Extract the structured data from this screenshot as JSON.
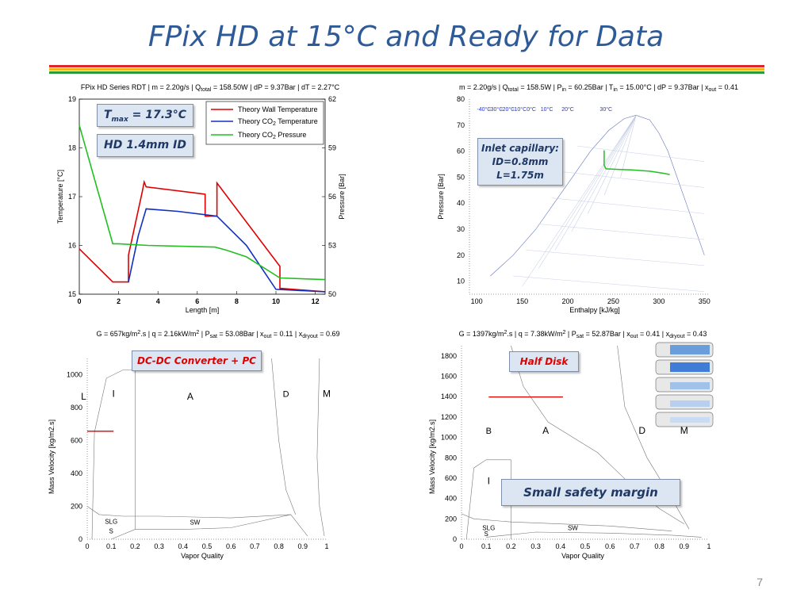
{
  "slide": {
    "title": "FPix HD at 15°C and Ready for Data",
    "page_number": "7",
    "band_colors": [
      "#e0242b",
      "#f0b418",
      "#2c9a3c"
    ]
  },
  "callouts": {
    "tmax": "T",
    "tmax_sub": "max",
    "tmax_rest": " = 17.3°C",
    "hd_id": "HD 1.4mm ID",
    "inlet_line1": "Inlet capillary:",
    "inlet_line2": "ID=0.8mm",
    "inlet_line3": "L=1.75m",
    "dcdc": "DC-DC Converter + PC",
    "half_disk": "Half Disk",
    "safety": "Small safety margin"
  },
  "chart_data": [
    {
      "type": "line",
      "title_parts": [
        "FPix HD Series RDT | m = 2.20g/s | Q",
        "total",
        " = 158.50W | dP = 9.37Bar | dT = 2.27°C"
      ],
      "xlabel": "Length [m]",
      "ylabel_left": "Temperature [°C]",
      "ylabel_right": "Pressure [Bar]",
      "xlim": [
        0,
        12.5
      ],
      "ylim_left": [
        15,
        19
      ],
      "ylim_right": [
        50,
        62
      ],
      "x_ticks": [
        "0",
        "2",
        "4",
        "6",
        "8",
        "10",
        "12"
      ],
      "y_ticks_left": [
        "15",
        "16",
        "17",
        "18",
        "19"
      ],
      "y_ticks_right": [
        "50",
        "53",
        "56",
        "59",
        "62"
      ],
      "legend": {
        "placement": "top-right",
        "entries": [
          {
            "text": "Theory Wall Temperature",
            "color": "#e00000"
          },
          {
            "text_parts": [
              "Theory CO",
              "2",
              " Temperature"
            ],
            "color": "#1030c0"
          },
          {
            "text_parts": [
              "Theory CO",
              "2",
              " Pressure"
            ],
            "color": "#20c020"
          }
        ]
      },
      "series": [
        {
          "name": "Theory Wall Temperature",
          "axis": "left",
          "color": "#e00000",
          "x": [
            0,
            1.7,
            2.5,
            2.5,
            3.2,
            3.3,
            3.4,
            6.4,
            6.4,
            7.0,
            7.0,
            10.2,
            10.2,
            12.5
          ],
          "y": [
            15.93,
            15.25,
            15.25,
            15.8,
            17.1,
            17.3,
            17.2,
            17.05,
            16.6,
            16.6,
            17.28,
            15.57,
            15.12,
            15.05
          ]
        },
        {
          "name": "Theory CO2 Temperature",
          "axis": "left",
          "color": "#1030c0",
          "x": [
            2.5,
            3.0,
            3.4,
            5.0,
            7.0,
            8.5,
            10.0,
            12.5
          ],
          "y": [
            15.25,
            16.2,
            16.75,
            16.7,
            16.6,
            16.0,
            15.1,
            15.05
          ]
        },
        {
          "name": "Theory CO2 Pressure",
          "axis": "right",
          "color": "#20c020",
          "x": [
            0,
            1.7,
            2.0,
            3.5,
            6.9,
            7.5,
            8.5,
            10.2,
            12.5
          ],
          "y": [
            60.4,
            53.1,
            53.1,
            53.0,
            52.9,
            52.7,
            52.3,
            51.0,
            50.9
          ]
        }
      ]
    },
    {
      "type": "line",
      "title_parts": [
        "m = 2.20g/s | Q",
        "total",
        " = 158.5W | P",
        "in",
        " = 60.25Bar | T",
        "in",
        " = 15.00°C | dP = 9.37Bar | x",
        "out",
        " = 0.41"
      ],
      "xlabel": "Enthalpy [kJ/kg]",
      "ylabel": "Pressure [Bar]",
      "xlim": [
        92,
        355
      ],
      "ylim": [
        5,
        80
      ],
      "x_ticks": [
        "100",
        "150",
        "200",
        "250",
        "300",
        "350"
      ],
      "y_ticks": [
        "10",
        "20",
        "30",
        "40",
        "50",
        "60",
        "70",
        "80"
      ],
      "isotherm_labels": [
        "-40°C",
        "-30°C",
        "-20°C",
        "-10°C",
        "0°C",
        "10°C",
        "20°C",
        "30°C"
      ],
      "series": [
        {
          "name": "Cycle",
          "color": "#20c020",
          "x": [
            240,
            240,
            242,
            255,
            270,
            290,
            305,
            312
          ],
          "y": [
            60.3,
            54.5,
            53.2,
            53.0,
            52.8,
            52.3,
            51.5,
            51.0
          ]
        }
      ]
    },
    {
      "type": "line",
      "title_parts": [
        "G = 657kg/m",
        "2",
        ".s | q = 2.16kW/m",
        "2",
        " | P",
        "sat",
        " = 53.08Bar | x",
        "out",
        " = 0.11 | x",
        "dryout",
        " = 0.69"
      ],
      "xlabel": "Vapor Quality",
      "ylabel": "Mass Velocity [kg/m2.s]",
      "xlim": [
        0,
        1
      ],
      "ylim": [
        0,
        1100
      ],
      "x_ticks": [
        "0",
        "0.1",
        "0.2",
        "0.3",
        "0.4",
        "0.5",
        "0.6",
        "0.7",
        "0.8",
        "0.9",
        "1"
      ],
      "y_ticks": [
        "0",
        "200",
        "400",
        "600",
        "800",
        "1000"
      ],
      "regions": [
        "L",
        "I",
        "A",
        "D",
        "M",
        "SLG",
        "S",
        "SW"
      ],
      "operating_point": {
        "x_start": 0,
        "x_end": 0.11,
        "G": 657,
        "color": "#e00000"
      }
    },
    {
      "type": "line",
      "title_parts": [
        "G = 1397kg/m",
        "2",
        ".s | q = 7.38kW/m",
        "2",
        " | P",
        "sat",
        " = 52.87Bar | x",
        "out",
        " = 0.41 | x",
        "dryout",
        " = 0.43"
      ],
      "xlabel": "Vapor Quality",
      "ylabel": "Mass Velocity [kg/m2.s]",
      "xlim": [
        0,
        1
      ],
      "ylim": [
        0,
        1900
      ],
      "x_ticks": [
        "0",
        "0.1",
        "0.2",
        "0.3",
        "0.4",
        "0.5",
        "0.6",
        "0.7",
        "0.8",
        "0.9",
        "1"
      ],
      "y_ticks": [
        "0",
        "200",
        "400",
        "600",
        "800",
        "1000",
        "1200",
        "1400",
        "1600",
        "1800"
      ],
      "regions": [
        "B",
        "A",
        "D",
        "M",
        "I",
        "SLG",
        "S",
        "SW"
      ],
      "operating_point": {
        "x_start": 0.11,
        "x_end": 0.41,
        "G": 1397,
        "color": "#e00000"
      }
    }
  ]
}
